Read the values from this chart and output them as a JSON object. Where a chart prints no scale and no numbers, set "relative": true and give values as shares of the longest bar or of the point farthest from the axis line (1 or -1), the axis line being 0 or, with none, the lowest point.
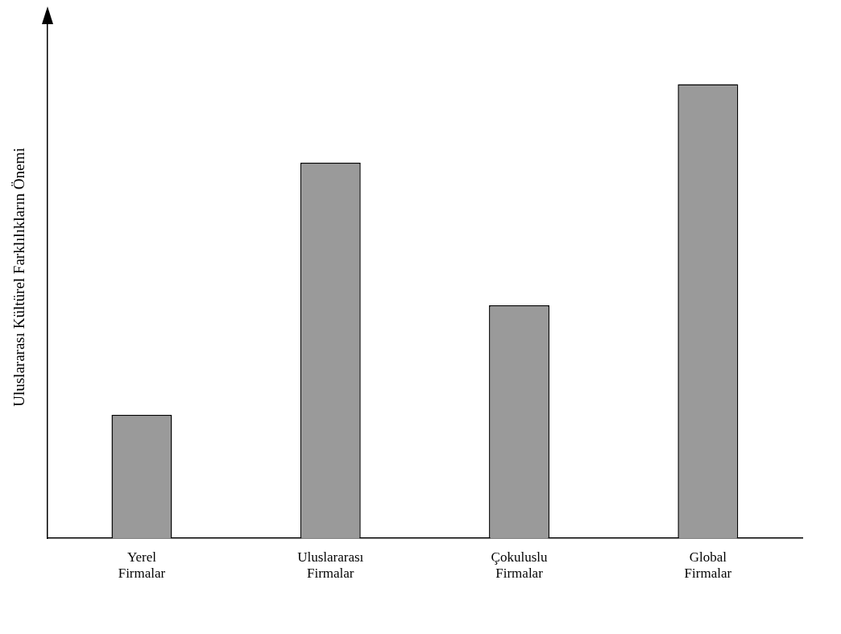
{
  "chart_data": {
    "type": "bar",
    "ylabel": "Uluslararası Kültürel Farklılıkların Önemi",
    "categories": [
      "Yerel Firmalar",
      "Uluslararası Firmalar",
      "Çokuluslu Firmalar",
      "Global Firmalar"
    ],
    "values": [
      0.272,
      0.827,
      0.513,
      1
    ],
    "color": "#9a9a9a",
    "relative": true,
    "grid": false,
    "legend": false
  }
}
